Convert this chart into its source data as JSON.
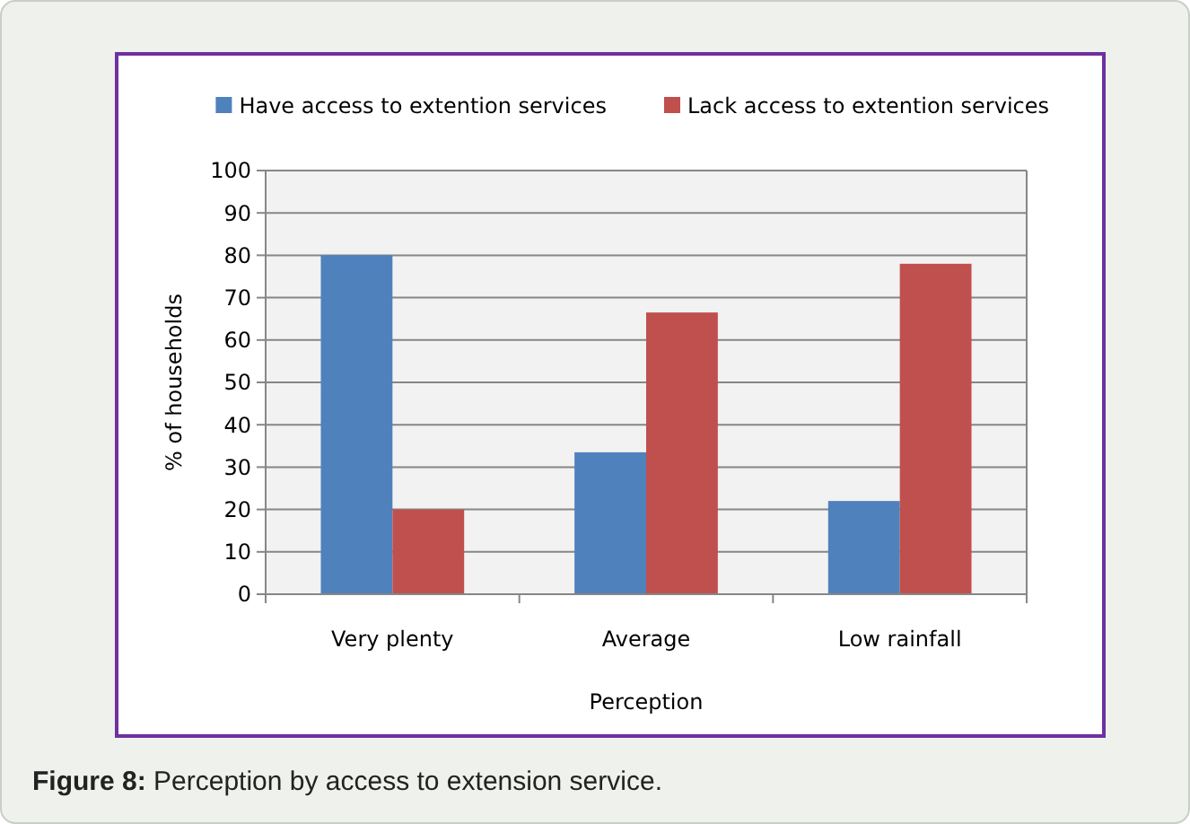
{
  "chart_data": {
    "type": "bar",
    "xlabel": "Perception",
    "ylabel": "% of households",
    "categories": [
      "Very plenty",
      "Average",
      "Low rainfall"
    ],
    "series": [
      {
        "name": "Have access to extention services",
        "color": "#4f81bd",
        "values": [
          80,
          33.5,
          22
        ]
      },
      {
        "name": "Lack access to extention services",
        "color": "#c0504d",
        "values": [
          20,
          66.5,
          78
        ]
      }
    ],
    "ylim": [
      0,
      100
    ],
    "yticks": [
      0,
      10,
      20,
      30,
      40,
      50,
      60,
      70,
      80,
      90,
      100
    ],
    "grid": "y",
    "legend": "top",
    "annotations": [
      "Figure 8: Perception by access to extension service."
    ]
  }
}
